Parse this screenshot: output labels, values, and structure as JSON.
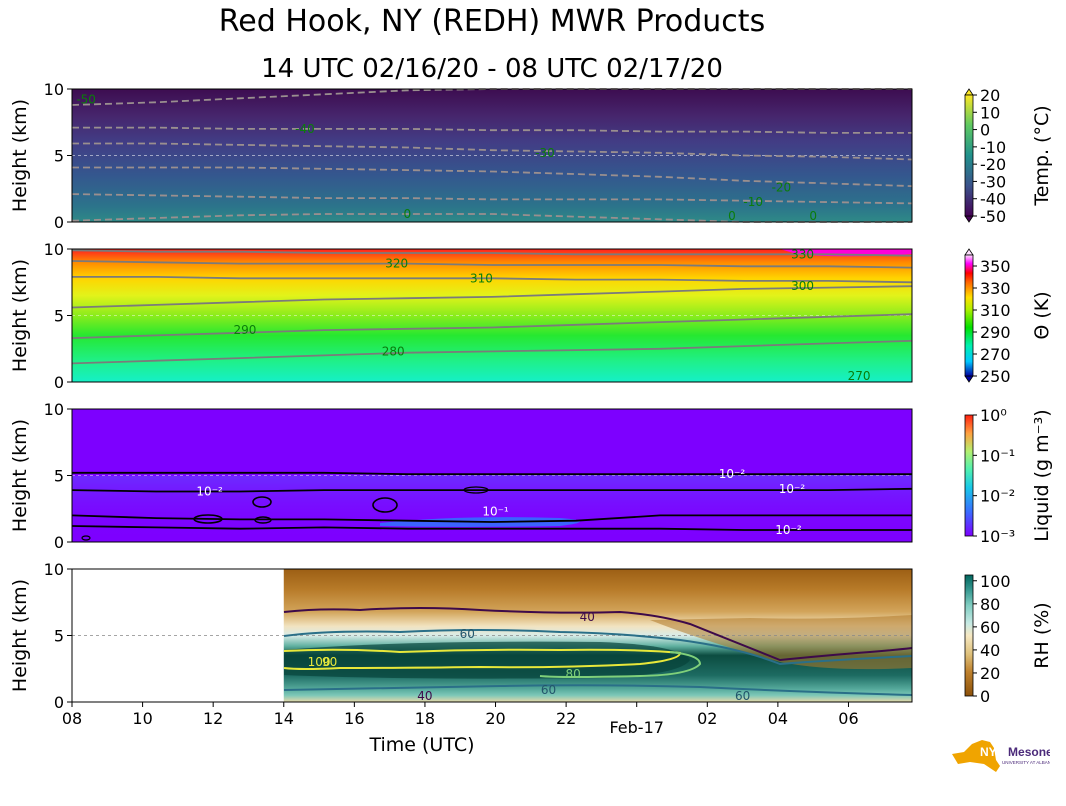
{
  "header": {
    "title": "Red Hook, NY (REDH) MWR Products",
    "subtitle": "14 UTC 02/16/20 - 08 UTC 02/17/20"
  },
  "logo": {
    "text": "NYS Mesonet",
    "sub": "UNIVERSITY AT ALBANY",
    "icon": "ny-state-map-logo"
  },
  "chart_data": [
    {
      "type": "heatmap",
      "ylabel": "Height (km)",
      "ylim": [
        0,
        10
      ],
      "y_ticks": [
        "0",
        "5",
        "10"
      ],
      "colorbar_label": "Temp. (°C)",
      "colorbar_ticks": [
        "20",
        "10",
        "0",
        "-10",
        "-20",
        "-30",
        "-40",
        "-50"
      ],
      "colorbar_range": [
        -50,
        20
      ],
      "contour_labels": [
        {
          "text": "-50",
          "x": 8.4,
          "y": 9.2
        },
        {
          "text": "-40",
          "x": 14.6,
          "y": 7.0
        },
        {
          "text": "-30",
          "x": 21.4,
          "y": 5.2
        },
        {
          "text": "-20",
          "x": 28.1,
          "y": 2.6
        },
        {
          "text": "-10",
          "x": 27.3,
          "y": 1.5
        },
        {
          "text": "0",
          "x": 17.5,
          "y": 0.6
        },
        {
          "text": "0",
          "x": 26.7,
          "y": 0.0
        },
        {
          "text": "0",
          "x": 29.0,
          "y": 0.0
        }
      ],
      "contour_levels": [
        {
          "level": -50,
          "y": [
            8.8,
            9.0,
            9.3,
            9.6,
            9.9,
            10.1,
            10.2,
            10.3,
            10.3,
            10.2,
            10.1
          ]
        },
        {
          "level": -40,
          "y": [
            7.1,
            7.1,
            7.0,
            7.0,
            7.0,
            6.9,
            6.9,
            6.8,
            6.8,
            6.7,
            6.7
          ]
        },
        {
          "level": -30,
          "y": [
            5.9,
            5.9,
            5.8,
            5.7,
            5.6,
            5.4,
            5.3,
            5.2,
            5.0,
            4.9,
            4.7
          ]
        },
        {
          "level": -20,
          "y": [
            4.1,
            4.1,
            4.1,
            4.0,
            3.9,
            3.8,
            3.6,
            3.4,
            3.1,
            2.9,
            2.7
          ]
        },
        {
          "level": -10,
          "y": [
            2.1,
            2.0,
            1.9,
            1.8,
            1.8,
            1.7,
            1.7,
            1.7,
            1.6,
            1.5,
            1.4
          ]
        },
        {
          "level": 0,
          "y": [
            0.1,
            0.3,
            0.5,
            0.6,
            0.6,
            0.6,
            0.4,
            0.2,
            0.0,
            0.0,
            0.0
          ]
        }
      ]
    },
    {
      "type": "heatmap",
      "ylabel": "Height (km)",
      "ylim": [
        0,
        10
      ],
      "y_ticks": [
        "0",
        "5",
        "10"
      ],
      "colorbar_label": "Θ (K)",
      "colorbar_ticks": [
        "350",
        "330",
        "310",
        "290",
        "270",
        "250"
      ],
      "colorbar_range": [
        250,
        360
      ],
      "contour_labels": [
        {
          "text": "330",
          "x": 28.7,
          "y": 9.6
        },
        {
          "text": "320",
          "x": 17.2,
          "y": 8.9
        },
        {
          "text": "310",
          "x": 19.6,
          "y": 7.8
        },
        {
          "text": "300",
          "x": 28.7,
          "y": 7.2
        },
        {
          "text": "290",
          "x": 12.9,
          "y": 3.9
        },
        {
          "text": "280",
          "x": 17.1,
          "y": 2.3
        },
        {
          "text": "270",
          "x": 30.3,
          "y": 0.1
        }
      ],
      "contour_levels": [
        {
          "level": 330,
          "y": [
            9.9,
            9.8,
            9.8,
            9.7,
            9.7,
            9.7,
            9.6,
            9.6,
            9.6,
            9.6,
            9.5
          ]
        },
        {
          "level": 320,
          "y": [
            9.1,
            9.0,
            8.9,
            8.9,
            8.9,
            8.8,
            8.8,
            8.8,
            8.7,
            8.7,
            8.6
          ]
        },
        {
          "level": 310,
          "y": [
            7.9,
            7.9,
            7.8,
            7.8,
            7.8,
            7.8,
            7.7,
            7.7,
            7.6,
            7.6,
            7.5
          ]
        },
        {
          "level": 300,
          "y": [
            5.6,
            5.8,
            6.0,
            6.2,
            6.3,
            6.4,
            6.6,
            6.8,
            7.0,
            7.1,
            7.2
          ]
        },
        {
          "level": 290,
          "y": [
            3.3,
            3.5,
            3.7,
            3.9,
            4.0,
            4.1,
            4.3,
            4.5,
            4.7,
            4.9,
            5.1
          ]
        },
        {
          "level": 280,
          "y": [
            1.4,
            1.6,
            1.8,
            2.0,
            2.2,
            2.3,
            2.4,
            2.5,
            2.7,
            2.9,
            3.1
          ]
        }
      ]
    },
    {
      "type": "heatmap",
      "ylabel": "Height (km)",
      "ylim": [
        0,
        10
      ],
      "y_ticks": [
        "0",
        "5",
        "10"
      ],
      "colorbar_label": "Liquid (g m⁻³)",
      "colorbar_ticks": [
        "10⁰",
        "10⁻¹",
        "10⁻²",
        "10⁻³"
      ],
      "colorbar_range": [
        0.001,
        1
      ],
      "contour_labels": [
        {
          "text": "10⁻²",
          "x": 11.9,
          "y": 3.8
        },
        {
          "text": "10⁻²",
          "x": 26.7,
          "y": 5.1
        },
        {
          "text": "10⁻²",
          "x": 28.4,
          "y": 4.0
        },
        {
          "text": "10⁻¹",
          "x": 20.0,
          "y": 2.3
        },
        {
          "text": "10⁻²",
          "x": 28.3,
          "y": 0.9
        }
      ],
      "contour_levels": [
        {
          "level": 0.01,
          "y": [
            5.2,
            5.2,
            5.2,
            5.2,
            5.1,
            5.1,
            5.1,
            5.1,
            5.1,
            5.1,
            5.1
          ]
        },
        {
          "level": 0.01,
          "y": [
            3.9,
            3.8,
            3.8,
            3.9,
            3.9,
            3.9,
            3.9,
            3.9,
            3.9,
            3.9,
            4.0
          ]
        },
        {
          "level": 0.1,
          "y": [
            2.0,
            1.8,
            1.7,
            1.7,
            1.6,
            1.5,
            1.6,
            2.0,
            2.0,
            2.0,
            2.0
          ]
        },
        {
          "level": 0.01,
          "y": [
            1.2,
            1.1,
            1.0,
            1.1,
            1.0,
            1.0,
            1.0,
            1.0,
            0.9,
            0.9,
            0.9
          ]
        }
      ]
    },
    {
      "type": "heatmap",
      "ylabel": "Height (km)",
      "xlabel": "Time (UTC)",
      "ylim": [
        0,
        10
      ],
      "y_ticks": [
        "0",
        "5",
        "10"
      ],
      "x_ticks": [
        "08",
        "10",
        "12",
        "14",
        "16",
        "18",
        "20",
        "22",
        "02",
        "04",
        "06"
      ],
      "x_tick_values": [
        8,
        10,
        12,
        14,
        16,
        18,
        20,
        22,
        26,
        28,
        30
      ],
      "date_label": "Feb-17",
      "xlim": [
        8,
        31.8
      ],
      "data_start": 14,
      "colorbar_label": "RH (%)",
      "colorbar_ticks": [
        "100",
        "80",
        "60",
        "40",
        "20",
        "0"
      ],
      "colorbar_range": [
        0,
        105
      ],
      "contour_labels": [
        {
          "text": "40",
          "x": 22.6,
          "y": 6.4
        },
        {
          "text": "60",
          "x": 19.2,
          "y": 5.1
        },
        {
          "text": "90",
          "x": 15.3,
          "y": 3.0
        },
        {
          "text": "100",
          "x": 15.0,
          "y": 3.0
        },
        {
          "text": "80",
          "x": 22.2,
          "y": 2.1
        },
        {
          "text": "60",
          "x": 21.5,
          "y": 0.9
        },
        {
          "text": "60",
          "x": 27.0,
          "y": 0.1
        },
        {
          "text": "40",
          "x": 18.0,
          "y": -0.1
        }
      ]
    }
  ]
}
